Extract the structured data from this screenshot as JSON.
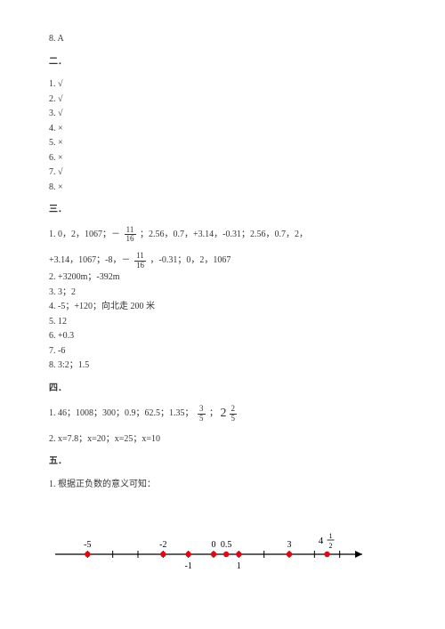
{
  "top": {
    "item8": "8. A"
  },
  "section2": {
    "heading": "二．",
    "items": [
      "1. √",
      "2. √",
      "3. √",
      "4. ×",
      "5. ×",
      "6. ×",
      "7. √",
      "8. ×"
    ]
  },
  "section3": {
    "heading": "三．",
    "line1a": "1. 0，2，1067；－",
    "frac1": {
      "num": "11",
      "den": "16"
    },
    "line1b": "；2.56，0.7，+3.14，-0.31；2.56，0.7，2，",
    "line2a": "+3.14，1067；-8，－",
    "frac2": {
      "num": "11",
      "den": "16"
    },
    "line2b": "，-0.31；0，2，1067",
    "items": [
      "2. +3200m；-392m",
      "3. 3；2",
      "4. -5；+120；向北走 200 米",
      "5. 12",
      "6. +0.3",
      "7. -6",
      "8. 3:2；1.5"
    ]
  },
  "section4": {
    "heading": "四．",
    "line1a": "1. 46；1008；300；0.9；62.5；1.35；",
    "frac1": {
      "num": "3",
      "den": "5"
    },
    "mid": "；",
    "mixed": {
      "whole": "2",
      "num": "2",
      "den": "5"
    },
    "line2": "2. x=7.8；x=20；x=25；x=10"
  },
  "section5": {
    "heading": "五．",
    "line1": "1. 根据正负数的意义可知："
  },
  "numberline": {
    "xmin": -6,
    "xmax": 6,
    "ticks": [
      -5,
      -4,
      -3,
      -2,
      -1,
      0,
      1,
      2,
      3,
      4,
      5
    ],
    "labels_top": [
      {
        "x": -5,
        "text": "-5"
      },
      {
        "x": -2,
        "text": "-2"
      },
      {
        "x": 0,
        "text": "0"
      },
      {
        "x": 0.5,
        "text": "0.5"
      },
      {
        "x": 3,
        "text": "3"
      },
      {
        "x": 4.5,
        "text": "4½",
        "mixed": {
          "whole": "4",
          "num": "1",
          "den": "2"
        }
      }
    ],
    "labels_bottom": [
      {
        "x": -1,
        "text": "-1"
      },
      {
        "x": 1,
        "text": "1"
      }
    ],
    "dots": [
      -5,
      -2,
      -1,
      0,
      0.5,
      1,
      3,
      4.5
    ],
    "axis_color": "#000000",
    "dot_color": "#e30613",
    "text_color": "#000000"
  }
}
